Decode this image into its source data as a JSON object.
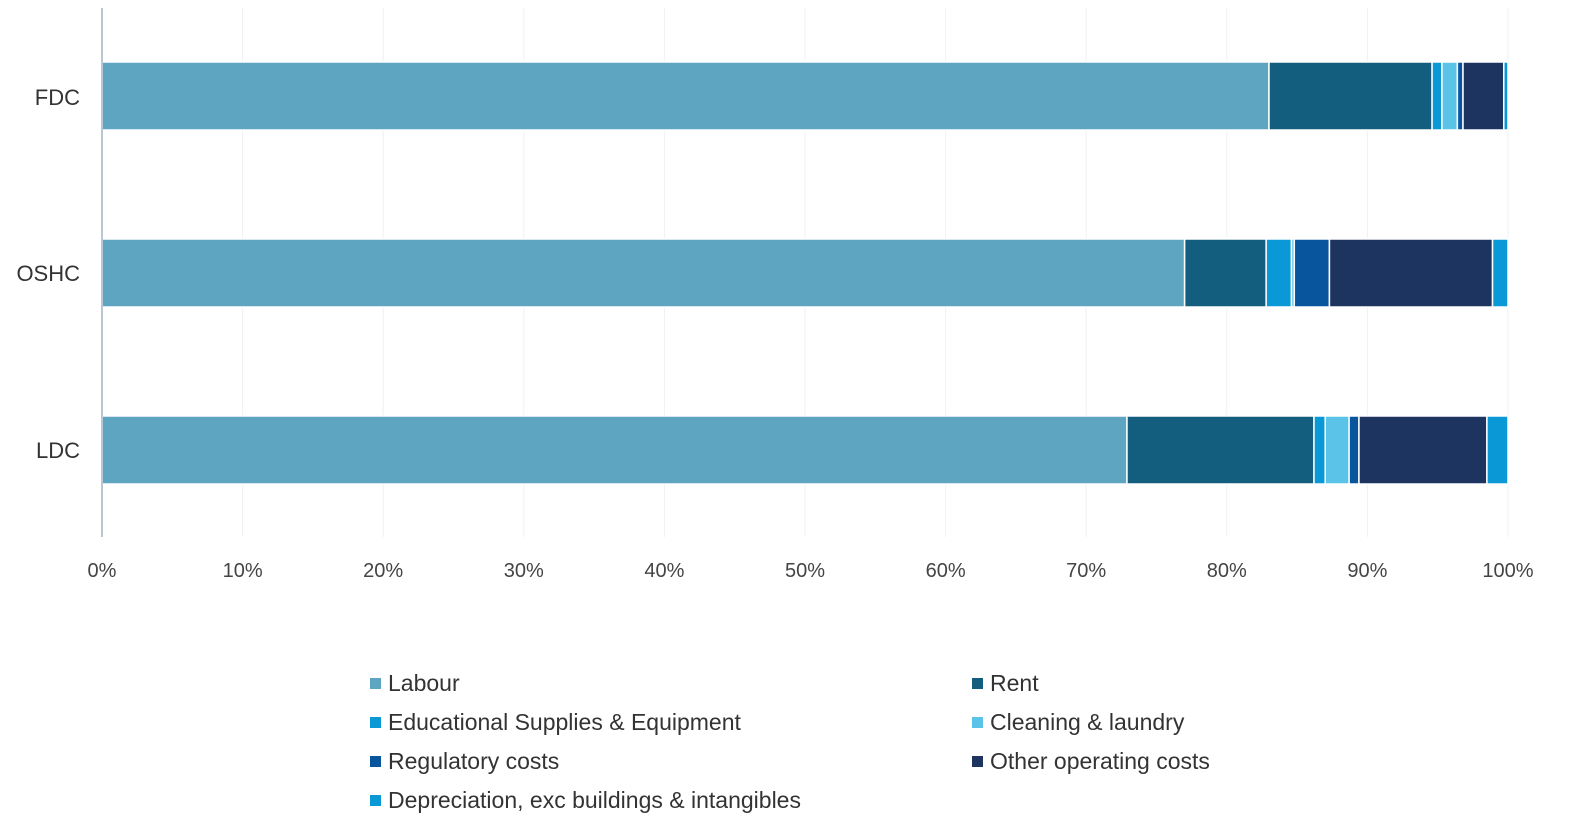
{
  "chart_data": {
    "type": "bar",
    "orientation": "horizontal",
    "stacked": true,
    "categories": [
      "FDC",
      "OSHC",
      "LDC"
    ],
    "series": [
      {
        "name": "Labour",
        "color": "#5ea5c1",
        "values": [
          83.0,
          77.0,
          72.9
        ]
      },
      {
        "name": "Rent",
        "color": "#135e7e",
        "values": [
          11.6,
          5.8,
          13.3
        ]
      },
      {
        "name": "Educational Supplies & Equipment",
        "color": "#0b98d6",
        "values": [
          0.7,
          1.8,
          0.8
        ]
      },
      {
        "name": "Cleaning & laundry",
        "color": "#5bc3e8",
        "values": [
          1.1,
          0.2,
          1.7
        ]
      },
      {
        "name": "Regulatory costs",
        "color": "#08559e",
        "values": [
          0.4,
          2.5,
          0.7
        ]
      },
      {
        "name": "Other operating costs",
        "color": "#1e3460",
        "values": [
          2.9,
          11.6,
          9.1
        ]
      },
      {
        "name": "Depreciation, exc buildings & intangibles",
        "color": "#0b98d6",
        "values": [
          0.3,
          1.1,
          1.5
        ]
      }
    ],
    "x_ticks": [
      "0%",
      "10%",
      "20%",
      "30%",
      "40%",
      "50%",
      "60%",
      "70%",
      "80%",
      "90%",
      "100%"
    ],
    "xlim": [
      0,
      100
    ],
    "grid": "vertical-light",
    "legend_position": "bottom"
  }
}
